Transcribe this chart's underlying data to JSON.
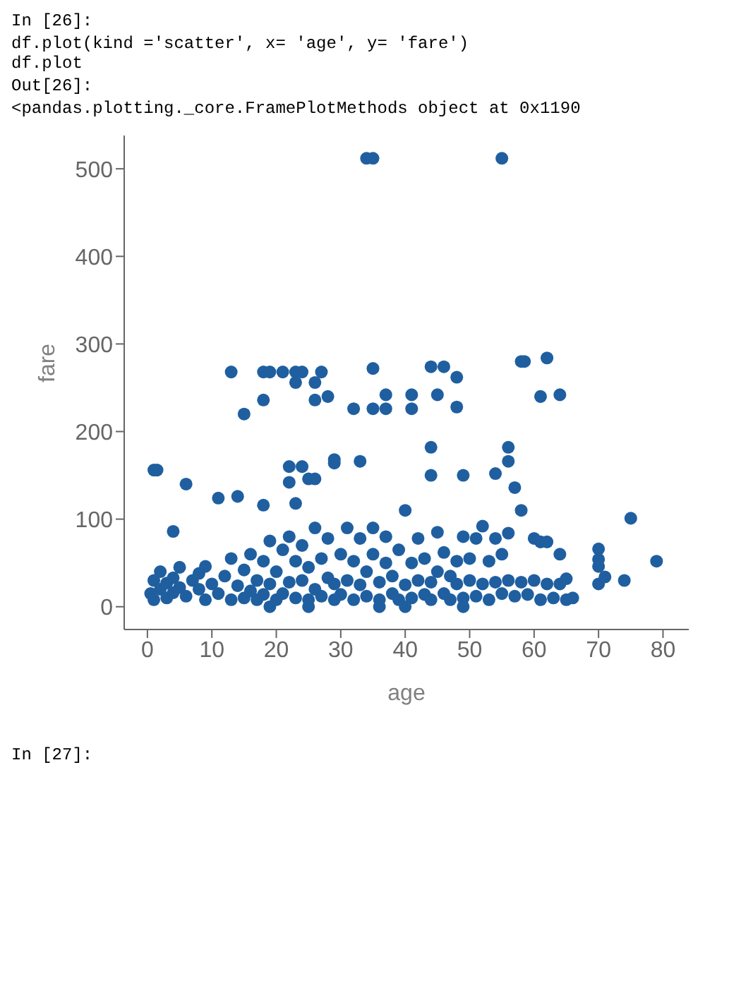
{
  "chart_data": {
    "type": "scatter",
    "xlabel": "age",
    "ylabel": "fare",
    "annotations": [
      "In [26]:",
      "df.plot(kind ='scatter', x= 'age', y= 'fare')\ndf.plot",
      "Out[26]:",
      "<pandas.plotting._core.FramePlotMethods object at 0x1190",
      "In [27]:"
    ],
    "xlim": [
      -3.6,
      84
    ],
    "ylim": [
      -26,
      538
    ],
    "xticks": [
      0,
      10,
      20,
      30,
      40,
      50,
      60,
      70,
      80
    ],
    "yticks": [
      0,
      100,
      200,
      300,
      400,
      500
    ],
    "marker": "circle",
    "series": [
      {
        "color": "#1f5fa0",
        "x": [
          0.5,
          1,
          1,
          2,
          2,
          3,
          3,
          4,
          4,
          5,
          5,
          6,
          7,
          8,
          8,
          9,
          9,
          10,
          11,
          12,
          13,
          13,
          14,
          15,
          15,
          16,
          16,
          17,
          17,
          18,
          18,
          19,
          19,
          20,
          20,
          21,
          21,
          22,
          22,
          23,
          23,
          24,
          24,
          25,
          25,
          26,
          26,
          27,
          27,
          28,
          28,
          29,
          29,
          30,
          30,
          31,
          31,
          32,
          32,
          33,
          33,
          34,
          34,
          35,
          35,
          36,
          36,
          37,
          37,
          38,
          38,
          39,
          39,
          40,
          40,
          41,
          41,
          42,
          42,
          43,
          43,
          44,
          44,
          45,
          45,
          46,
          46,
          47,
          47,
          48,
          48,
          49,
          49,
          50,
          50,
          51,
          51,
          52,
          52,
          53,
          53,
          54,
          54,
          55,
          55,
          56,
          56,
          57,
          58,
          58,
          59,
          60,
          60,
          61,
          61,
          62,
          62,
          63,
          64,
          64,
          65,
          65,
          66,
          70,
          70,
          70,
          70,
          71,
          74,
          75,
          79,
          19,
          25,
          36,
          40,
          49,
          1,
          1.5,
          4,
          6,
          11,
          14,
          13,
          15,
          18,
          18,
          19,
          21,
          23,
          24,
          18,
          23,
          22,
          22,
          23,
          26,
          27,
          26,
          28,
          24,
          25,
          26,
          29,
          29,
          33,
          32,
          35,
          35,
          37,
          37,
          41,
          41,
          44,
          45,
          46,
          48,
          48,
          44,
          44,
          49,
          54,
          56,
          56,
          57,
          58,
          58.5,
          61,
          62,
          64,
          34,
          35,
          55
        ],
        "values": [
          15,
          30,
          8,
          20,
          40,
          10,
          27,
          16,
          33,
          22,
          45,
          12,
          30,
          20,
          38,
          46,
          8,
          26,
          15,
          35,
          8,
          55,
          24,
          10,
          42,
          60,
          18,
          8,
          30,
          52,
          14,
          75,
          26,
          8,
          40,
          65,
          15,
          28,
          80,
          10,
          52,
          30,
          70,
          8,
          45,
          20,
          90,
          12,
          55,
          33,
          78,
          8,
          26,
          14,
          60,
          30,
          90,
          8,
          52,
          25,
          78,
          12,
          40,
          60,
          90,
          8,
          28,
          50,
          80,
          15,
          35,
          8,
          65,
          25,
          110,
          10,
          50,
          30,
          78,
          14,
          55,
          8,
          28,
          40,
          85,
          15,
          62,
          8,
          35,
          26,
          52,
          10,
          80,
          30,
          55,
          12,
          78,
          26,
          92,
          8,
          52,
          28,
          78,
          15,
          60,
          30,
          84,
          12,
          28,
          110,
          14,
          30,
          78,
          8,
          74,
          26,
          74,
          10,
          60,
          26,
          32,
          8,
          10,
          26,
          46,
          54,
          66,
          34,
          30,
          101,
          52,
          0,
          0,
          0,
          0,
          0,
          156,
          156,
          86,
          140,
          124,
          126,
          268,
          220,
          236,
          268,
          268,
          268,
          268,
          268,
          116,
          118,
          142,
          160,
          256,
          256,
          268,
          236,
          240,
          160,
          146,
          146,
          164,
          168,
          166,
          226,
          272,
          226,
          226,
          242,
          226,
          242,
          274,
          242,
          274,
          228,
          262,
          182,
          150,
          150,
          152,
          166,
          182,
          136,
          280,
          280,
          240,
          284,
          242,
          512,
          512,
          512
        ]
      }
    ]
  }
}
